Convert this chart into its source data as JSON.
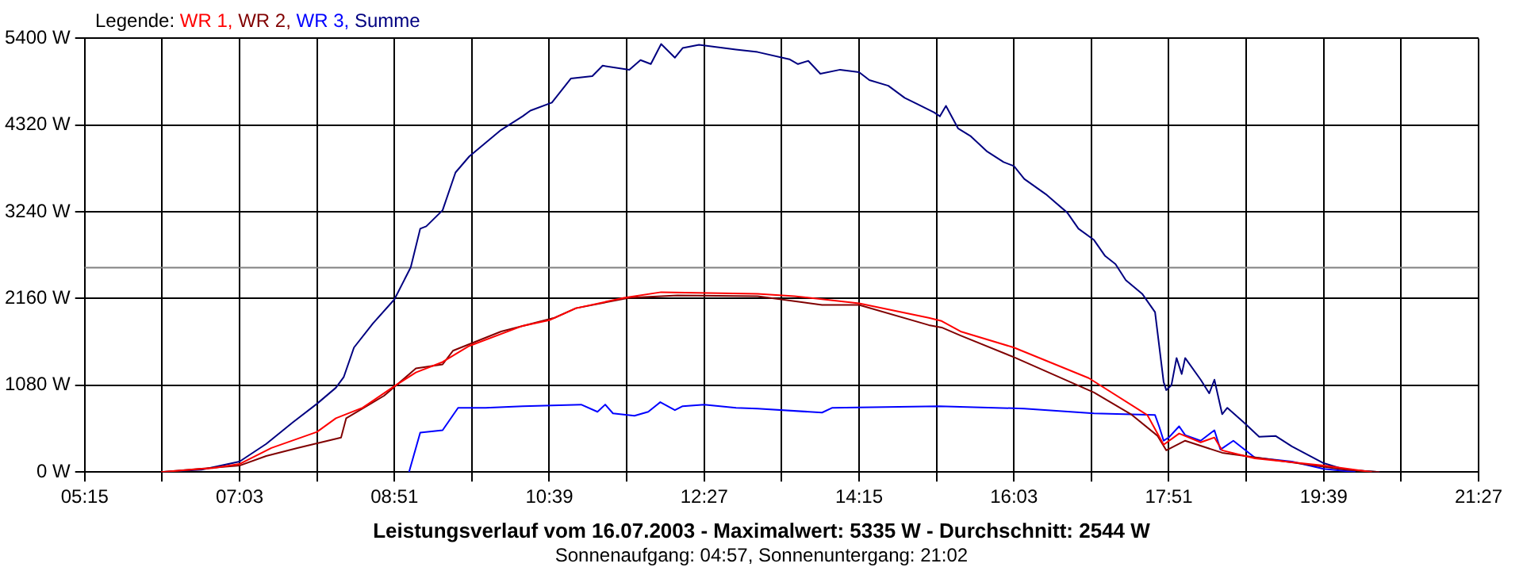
{
  "chart_data": {
    "type": "line",
    "title": "Leistungsverlauf vom 16.07.2003 - Maximalwert: 5335 W - Durchschnitt: 2544 W",
    "subtitle": "Sonnenaufgang: 04:57, Sonnenuntergang: 21:02",
    "legend_title": "Legende:",
    "legend": "top left",
    "grid": true,
    "marker": "none",
    "line_style": "solid",
    "xlim": [
      5.25,
      21.45
    ],
    "xticks": [
      {
        "value": 5.25,
        "label": "05:15"
      },
      {
        "value": 6.15,
        "label": null
      },
      {
        "value": 7.05,
        "label": "07:03"
      },
      {
        "value": 7.95,
        "label": null
      },
      {
        "value": 8.85,
        "label": "08:51"
      },
      {
        "value": 9.75,
        "label": null
      },
      {
        "value": 10.65,
        "label": "10:39"
      },
      {
        "value": 11.55,
        "label": null
      },
      {
        "value": 12.45,
        "label": "12:27"
      },
      {
        "value": 13.35,
        "label": null
      },
      {
        "value": 14.25,
        "label": "14:15"
      },
      {
        "value": 15.15,
        "label": null
      },
      {
        "value": 16.05,
        "label": "16:03"
      },
      {
        "value": 16.95,
        "label": null
      },
      {
        "value": 17.85,
        "label": "17:51"
      },
      {
        "value": 18.75,
        "label": null
      },
      {
        "value": 19.65,
        "label": "19:39"
      },
      {
        "value": 20.55,
        "label": null
      },
      {
        "value": 21.45,
        "label": "21:27"
      }
    ],
    "ylim": [
      0,
      5400
    ],
    "yticks": [
      {
        "value": 0,
        "label": "0 W"
      },
      {
        "value": 1080,
        "label": "1080 W"
      },
      {
        "value": 2160,
        "label": "2160 W"
      },
      {
        "value": 3240,
        "label": "3240 W"
      },
      {
        "value": 4320,
        "label": "4320 W"
      },
      {
        "value": 5400,
        "label": "5400 W"
      }
    ],
    "ref_lines": [
      {
        "axis": "y",
        "value": 2544,
        "color": "#808080"
      }
    ],
    "series": [
      {
        "name": "WR 1,",
        "color": "#ff0000",
        "x": [
          6.14,
          6.74,
          7.05,
          7.42,
          7.95,
          8.17,
          8.48,
          8.85,
          9.1,
          9.41,
          9.72,
          10.34,
          10.65,
          10.96,
          11.52,
          11.95,
          13.07,
          13.5,
          14.25,
          15.06,
          15.21,
          15.43,
          16.05,
          16.92,
          17.6,
          17.79,
          17.97,
          18.22,
          18.38,
          18.47,
          18.85,
          19.65,
          20.21
        ],
        "values": [
          0,
          50,
          100,
          300,
          500,
          670,
          800,
          1070,
          1240,
          1370,
          1570,
          1820,
          1890,
          2040,
          2170,
          2240,
          2220,
          2190,
          2100,
          1920,
          1880,
          1750,
          1550,
          1170,
          710,
          340,
          480,
          370,
          430,
          270,
          170,
          80,
          0
        ]
      },
      {
        "name": "WR 2,",
        "color": "#800000",
        "x": [
          6.14,
          7.05,
          7.36,
          7.73,
          8.23,
          8.29,
          8.73,
          9.1,
          9.41,
          9.53,
          10.09,
          10.71,
          10.96,
          11.58,
          12.14,
          13.07,
          13.82,
          14.25,
          15.06,
          15.21,
          15.43,
          16.05,
          16.98,
          17.41,
          17.72,
          17.82,
          18.04,
          18.47,
          19.9,
          20.3
        ],
        "values": [
          0,
          80,
          200,
          300,
          430,
          670,
          950,
          1290,
          1340,
          1510,
          1750,
          1920,
          2040,
          2170,
          2200,
          2190,
          2080,
          2080,
          1830,
          1800,
          1700,
          1430,
          990,
          720,
          450,
          270,
          390,
          240,
          30,
          0
        ]
      },
      {
        "name": "WR 3,",
        "color": "#0000ff",
        "x": [
          9.02,
          9.15,
          9.41,
          9.59,
          9.91,
          10.34,
          11.02,
          11.21,
          11.3,
          11.39,
          11.64,
          11.8,
          11.94,
          12.11,
          12.2,
          12.45,
          12.82,
          13.07,
          13.82,
          13.94,
          15.18,
          16.17,
          16.98,
          17.69,
          17.74,
          17.79,
          17.85,
          17.97,
          18.04,
          18.22,
          18.38,
          18.45,
          18.6,
          18.85,
          19.28,
          19.65,
          20.02
        ],
        "values": [
          0,
          490,
          520,
          800,
          800,
          820,
          840,
          750,
          840,
          730,
          700,
          750,
          870,
          770,
          820,
          840,
          800,
          790,
          740,
          800,
          820,
          790,
          730,
          710,
          560,
          390,
          430,
          570,
          460,
          390,
          520,
          280,
          390,
          180,
          130,
          40,
          0
        ]
      },
      {
        "name": "Summe",
        "color": "#000080",
        "x": [
          6.14,
          6.61,
          7.05,
          7.36,
          7.67,
          7.95,
          8.17,
          8.26,
          8.38,
          8.6,
          8.85,
          9.04,
          9.15,
          9.22,
          9.41,
          9.56,
          9.72,
          10.09,
          10.34,
          10.43,
          10.68,
          10.9,
          11.15,
          11.27,
          11.58,
          11.71,
          11.83,
          11.95,
          12.11,
          12.2,
          12.39,
          12.82,
          13.07,
          13.44,
          13.54,
          13.66,
          13.8,
          14.03,
          14.25,
          14.37,
          14.59,
          14.78,
          14.93,
          15.12,
          15.19,
          15.26,
          15.4,
          15.55,
          15.74,
          15.93,
          16.05,
          16.17,
          16.42,
          16.67,
          16.8,
          16.98,
          17.11,
          17.23,
          17.35,
          17.54,
          17.69,
          17.79,
          17.82,
          17.88,
          17.94,
          18,
          18.04,
          18.22,
          18.32,
          18.38,
          18.47,
          18.53,
          18.72,
          18.9,
          19.09,
          19.28,
          19.65,
          19.9,
          20.3
        ],
        "values": [
          0,
          30,
          130,
          350,
          620,
          850,
          1050,
          1180,
          1550,
          1850,
          2150,
          2550,
          3030,
          3060,
          3260,
          3730,
          3930,
          4260,
          4430,
          4500,
          4600,
          4900,
          4930,
          5060,
          5010,
          5130,
          5080,
          5330,
          5160,
          5280,
          5320,
          5260,
          5230,
          5140,
          5080,
          5120,
          4960,
          5010,
          4980,
          4880,
          4810,
          4660,
          4580,
          4480,
          4430,
          4560,
          4280,
          4180,
          3990,
          3860,
          3810,
          3650,
          3460,
          3230,
          3030,
          2890,
          2690,
          2590,
          2390,
          2220,
          1990,
          1120,
          1020,
          1080,
          1420,
          1220,
          1420,
          1150,
          980,
          1150,
          720,
          800,
          620,
          440,
          450,
          320,
          110,
          30,
          0
        ]
      }
    ]
  }
}
